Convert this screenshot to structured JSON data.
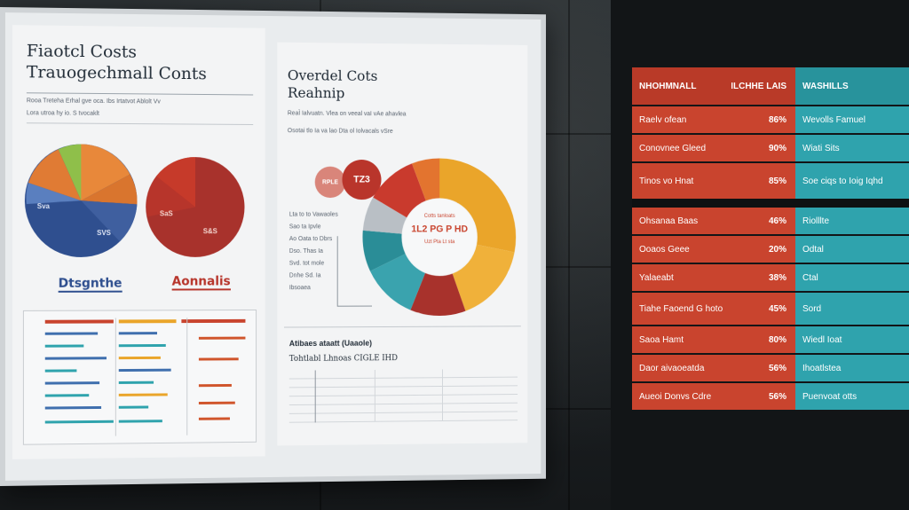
{
  "poster": {
    "left_title_line1": "Fiaotcl Costs",
    "left_title_line2": "Trauogechmall Conts",
    "left_sub_line1": "Rooa Treteha Erhal gve oca. Ibs Irtatvot Ablolt Vv",
    "left_sub_line2": "Lora utroa hy io. S tvocaklt",
    "pie1_label_a": "Sva",
    "pie1_label_b": "SVS",
    "pie1_caption": "Dtsgnthe",
    "pie2_label_a": "SaS",
    "pie2_label_b": "S&S",
    "pie2_caption": "Aonnalis",
    "right_title_line1": "Overdel Cots",
    "right_title_line2": "Reahnip",
    "right_sub_line1": "ReaÌ Ialvuatn. Vlea on veeal vaI vAe ahavlea",
    "right_sub_line2": "Osotai tlo Ia va lao Dta ol Iolvacals vSre",
    "bubble_small": "RPLE",
    "bubble_big": "TZ3",
    "donut_center_top": "Cotts tanloats",
    "donut_center_main": "1L2 PG P HD",
    "donut_center_bottom": "Uzt Pta Lt sta",
    "left_legend": [
      "Lta to to Vawaoles",
      "Sao ta Ipvle",
      "Ao Oata to Dbrs",
      "Dso. Thas Ia",
      "Svd. tot mole",
      "Dnhe Sd. Ia",
      "Ibsoaea"
    ],
    "table_title": "Atibaes ataatt (Uaaole)",
    "table_subtitle": "Tohtlabl Lhnoas CIGLE IHD"
  },
  "board": {
    "header": [
      "NHOHMNALL",
      "HLCHHE LAIS",
      "WASHILLS"
    ],
    "group1": [
      {
        "name": "Raelv ofean",
        "value": "86%",
        "note": "Wevolls Famuel"
      },
      {
        "name": "Conovnee Gleed",
        "value": "90%",
        "note": "Wiati Sits"
      },
      {
        "name": "Tinos vo Hnat",
        "value": "85%",
        "note": "Soe ciqs to Ioig Iqhd"
      }
    ],
    "group2": [
      {
        "name": "Ohsanaa Baas",
        "value": "46%",
        "note": "Riolllte"
      },
      {
        "name": "Ooaos Geee",
        "value": "20%",
        "note": "Odtal"
      },
      {
        "name": "Yalaeabt",
        "value": "38%",
        "note": "Ctal"
      },
      {
        "name": "Tiahe Faoend G hoto",
        "value": "45%",
        "note": "Sord"
      },
      {
        "name": "Saoa Hamt",
        "value": "80%",
        "note": "Wiedl Ioat"
      },
      {
        "name": "Daor aivaoeatda",
        "value": "56%",
        "note": "Ihoatlstea"
      },
      {
        "name": "Aueoi Donvs Cdre",
        "value": "56%",
        "note": "Puenvoat otts"
      }
    ]
  },
  "colors": {
    "red": "#c9442e",
    "teal": "#2fa3ad",
    "orange": "#e8883a",
    "yellow": "#eaa52a",
    "navy": "#2f4f8f",
    "maroon": "#9e2f2a"
  }
}
